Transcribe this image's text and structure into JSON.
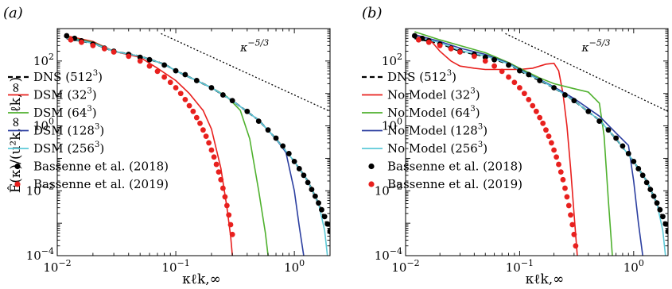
{
  "figure": {
    "ylabel": "Ê(κ)/(u²k,∞ ℓk,∞)",
    "xlabel": "κℓk,∞"
  },
  "chart_data": [
    {
      "type": "line",
      "panel": "(a)",
      "xlabel": "κℓk,∞",
      "ylabel": "Ê(κ)/(u²k,∞ ℓk,∞)",
      "xscale": "log",
      "yscale": "log",
      "xlim": [
        0.01,
        2
      ],
      "ylim": [
        0.0001,
        1000
      ],
      "xticks": [
        {
          "v": 0.01,
          "base": "10",
          "exp": "−2"
        },
        {
          "v": 0.1,
          "base": "10",
          "exp": "−1"
        },
        {
          "v": 1,
          "base": "10",
          "exp": "0"
        }
      ],
      "yticks": [
        {
          "v": 0.0001,
          "base": "10",
          "exp": "−4"
        },
        {
          "v": 0.01,
          "base": "10",
          "exp": "−2"
        },
        {
          "v": 1,
          "base": "10",
          "exp": "0"
        },
        {
          "v": 100,
          "base": "10",
          "exp": "2"
        }
      ],
      "grid": false,
      "legend_position": "left",
      "annotation": {
        "base": "κ",
        "exp": "−5/3",
        "x": 0.35,
        "y": 200
      },
      "reference_line": {
        "slope": -1.6667,
        "points": [
          [
            0.075,
            700
          ],
          [
            2,
            2.8
          ]
        ],
        "color": "#000000",
        "dash": "dotted"
      },
      "series": [
        {
          "name": "DNS",
          "res": "512",
          "color": "#000000",
          "style": "dashed",
          "x": [
            0.012,
            0.02,
            0.03,
            0.05,
            0.08,
            0.1,
            0.15,
            0.2,
            0.3,
            0.5,
            0.7,
            1.0,
            1.3,
            1.6,
            2.0
          ],
          "y": [
            500,
            350,
            200,
            140,
            80,
            50,
            25,
            15,
            6,
            1.5,
            0.4,
            0.08,
            0.02,
            0.004,
            0.0005
          ]
        },
        {
          "name": "DSM",
          "res": "32",
          "color": "#e8201e",
          "style": "solid",
          "x": [
            0.012,
            0.02,
            0.03,
            0.05,
            0.07,
            0.1,
            0.13,
            0.17,
            0.2,
            0.24,
            0.27,
            0.29,
            0.3
          ],
          "y": [
            600,
            400,
            200,
            130,
            60,
            25,
            10,
            3,
            0.8,
            0.05,
            0.003,
            0.0004,
            0.0001
          ]
        },
        {
          "name": "DSM",
          "res": "64",
          "color": "#4fb12e",
          "style": "solid",
          "x": [
            0.012,
            0.02,
            0.03,
            0.05,
            0.08,
            0.1,
            0.15,
            0.2,
            0.27,
            0.35,
            0.42,
            0.5,
            0.57,
            0.6
          ],
          "y": [
            550,
            380,
            200,
            140,
            80,
            50,
            25,
            15,
            8,
            3,
            0.4,
            0.01,
            0.0005,
            0.0001
          ]
        },
        {
          "name": "DSM",
          "res": "128",
          "color": "#2c3fa0",
          "style": "solid",
          "x": [
            0.012,
            0.02,
            0.03,
            0.05,
            0.08,
            0.1,
            0.15,
            0.2,
            0.3,
            0.5,
            0.7,
            0.85,
            1.0,
            1.1,
            1.2
          ],
          "y": [
            520,
            360,
            200,
            140,
            80,
            50,
            25,
            15,
            6,
            1.5,
            0.4,
            0.15,
            0.01,
            0.0008,
            0.0001
          ]
        },
        {
          "name": "DSM",
          "res": "256",
          "color": "#5ccad8",
          "style": "solid",
          "x": [
            0.012,
            0.02,
            0.03,
            0.05,
            0.08,
            0.1,
            0.15,
            0.2,
            0.3,
            0.5,
            0.7,
            1.0,
            1.3,
            1.6,
            1.8,
            1.9
          ],
          "y": [
            510,
            350,
            200,
            140,
            80,
            50,
            25,
            15,
            6,
            1.5,
            0.4,
            0.08,
            0.02,
            0.004,
            0.0006,
            0.0001
          ]
        },
        {
          "name": "Bassenne et al. (2018)",
          "color": "#000000",
          "style": "marker",
          "x": [
            0.012,
            0.014,
            0.016,
            0.02,
            0.025,
            0.03,
            0.04,
            0.05,
            0.06,
            0.08,
            0.1,
            0.12,
            0.15,
            0.2,
            0.25,
            0.3,
            0.4,
            0.5,
            0.6,
            0.7,
            0.8,
            0.9,
            1.0,
            1.1,
            1.2,
            1.3,
            1.4,
            1.5,
            1.6,
            1.7,
            1.8,
            1.9,
            2.0
          ],
          "y": [
            600,
            500,
            420,
            330,
            250,
            200,
            160,
            130,
            110,
            75,
            50,
            38,
            25,
            15,
            9,
            6,
            2.8,
            1.4,
            0.75,
            0.42,
            0.24,
            0.14,
            0.08,
            0.048,
            0.03,
            0.018,
            0.011,
            0.0068,
            0.0042,
            0.0026,
            0.0016,
            0.00095,
            0.00055
          ]
        },
        {
          "name": "Bassenne et al. (2019)",
          "color": "#e8201e",
          "style": "marker",
          "x": [
            0.013,
            0.016,
            0.02,
            0.025,
            0.03,
            0.04,
            0.05,
            0.06,
            0.07,
            0.08,
            0.09,
            0.1,
            0.11,
            0.12,
            0.13,
            0.14,
            0.15,
            0.16,
            0.17,
            0.18,
            0.19,
            0.2,
            0.21,
            0.22,
            0.23,
            0.24,
            0.25,
            0.26,
            0.27,
            0.28,
            0.29,
            0.3
          ],
          "y": [
            450,
            380,
            300,
            240,
            190,
            140,
            100,
            70,
            48,
            32,
            22,
            15,
            10,
            6.5,
            4.2,
            2.8,
            1.8,
            1.2,
            0.75,
            0.48,
            0.3,
            0.18,
            0.11,
            0.065,
            0.038,
            0.022,
            0.012,
            0.0065,
            0.0035,
            0.0018,
            0.0009,
            0.00045
          ]
        }
      ]
    },
    {
      "type": "line",
      "panel": "(b)",
      "xlabel": "κℓk,∞",
      "ylabel": "",
      "xscale": "log",
      "yscale": "log",
      "xlim": [
        0.01,
        2
      ],
      "ylim": [
        0.0001,
        1000
      ],
      "xticks": [
        {
          "v": 0.01,
          "base": "10",
          "exp": "−2"
        },
        {
          "v": 0.1,
          "base": "10",
          "exp": "−1"
        },
        {
          "v": 1,
          "base": "10",
          "exp": "0"
        }
      ],
      "yticks": [
        {
          "v": 0.0001,
          "base": "10",
          "exp": "−4"
        },
        {
          "v": 0.01,
          "base": "10",
          "exp": "−2"
        },
        {
          "v": 1,
          "base": "10",
          "exp": "0"
        },
        {
          "v": 100,
          "base": "10",
          "exp": "2"
        }
      ],
      "grid": false,
      "legend_position": "left",
      "annotation": {
        "base": "κ",
        "exp": "−5/3",
        "x": 0.35,
        "y": 200
      },
      "reference_line": {
        "slope": -1.6667,
        "points": [
          [
            0.075,
            700
          ],
          [
            2,
            2.8
          ]
        ],
        "color": "#000000",
        "dash": "dotted"
      },
      "series": [
        {
          "name": "DNS",
          "res": "512",
          "color": "#000000",
          "style": "dashed",
          "x": [
            0.012,
            0.02,
            0.03,
            0.05,
            0.08,
            0.1,
            0.15,
            0.2,
            0.3,
            0.5,
            0.7,
            1.0,
            1.3,
            1.6,
            2.0
          ],
          "y": [
            500,
            350,
            200,
            140,
            80,
            50,
            25,
            15,
            6,
            1.5,
            0.4,
            0.08,
            0.02,
            0.004,
            0.0005
          ]
        },
        {
          "name": "No Model",
          "res": "32",
          "color": "#e8201e",
          "style": "solid",
          "x": [
            0.012,
            0.016,
            0.02,
            0.025,
            0.03,
            0.04,
            0.05,
            0.07,
            0.1,
            0.13,
            0.17,
            0.2,
            0.22,
            0.24,
            0.26,
            0.28,
            0.3,
            0.32
          ],
          "y": [
            600,
            500,
            200,
            100,
            70,
            60,
            55,
            55,
            55,
            60,
            80,
            85,
            50,
            10,
            1,
            0.05,
            0.002,
            0.0001
          ]
        },
        {
          "name": "No Model",
          "res": "64",
          "color": "#4fb12e",
          "style": "solid",
          "x": [
            0.012,
            0.02,
            0.03,
            0.05,
            0.08,
            0.1,
            0.15,
            0.2,
            0.3,
            0.4,
            0.5,
            0.55,
            0.6,
            0.65
          ],
          "y": [
            800,
            450,
            300,
            180,
            90,
            60,
            30,
            20,
            14,
            11,
            5,
            0.5,
            0.005,
            0.0001
          ]
        },
        {
          "name": "No Model",
          "res": "128",
          "color": "#2c3fa0",
          "style": "solid",
          "x": [
            0.012,
            0.02,
            0.03,
            0.05,
            0.08,
            0.1,
            0.15,
            0.2,
            0.3,
            0.5,
            0.7,
            0.9,
            1.0,
            1.1,
            1.2
          ],
          "y": [
            650,
            400,
            250,
            160,
            85,
            55,
            27,
            16,
            7,
            2,
            0.6,
            0.25,
            0.02,
            0.001,
            0.0001
          ]
        },
        {
          "name": "No Model",
          "res": "256",
          "color": "#5ccad8",
          "style": "solid",
          "x": [
            0.012,
            0.02,
            0.03,
            0.05,
            0.08,
            0.1,
            0.15,
            0.2,
            0.3,
            0.5,
            0.7,
            1.0,
            1.3,
            1.6,
            1.8,
            1.9
          ],
          "y": [
            560,
            370,
            210,
            145,
            82,
            52,
            26,
            15,
            6,
            1.5,
            0.4,
            0.08,
            0.02,
            0.004,
            0.0006,
            0.0001
          ]
        },
        {
          "name": "Bassenne et al. (2018)",
          "color": "#000000",
          "style": "marker",
          "x": [
            0.012,
            0.014,
            0.016,
            0.02,
            0.025,
            0.03,
            0.04,
            0.05,
            0.06,
            0.08,
            0.1,
            0.12,
            0.15,
            0.2,
            0.25,
            0.3,
            0.4,
            0.5,
            0.6,
            0.7,
            0.8,
            0.9,
            1.0,
            1.1,
            1.2,
            1.3,
            1.4,
            1.5,
            1.6,
            1.7,
            1.8,
            1.9,
            2.0
          ],
          "y": [
            600,
            500,
            420,
            330,
            250,
            200,
            160,
            130,
            110,
            75,
            50,
            38,
            25,
            15,
            9,
            6,
            2.8,
            1.4,
            0.75,
            0.42,
            0.24,
            0.14,
            0.08,
            0.048,
            0.03,
            0.018,
            0.011,
            0.0068,
            0.0042,
            0.0026,
            0.0016,
            0.00095,
            0.00055
          ]
        },
        {
          "name": "Bassenne et al. (2019)",
          "color": "#e8201e",
          "style": "marker",
          "x": [
            0.013,
            0.016,
            0.02,
            0.025,
            0.03,
            0.04,
            0.05,
            0.06,
            0.07,
            0.08,
            0.09,
            0.1,
            0.11,
            0.12,
            0.13,
            0.14,
            0.15,
            0.16,
            0.17,
            0.18,
            0.19,
            0.2,
            0.21,
            0.22,
            0.23,
            0.24,
            0.25,
            0.26,
            0.27,
            0.28,
            0.29,
            0.3,
            0.31
          ],
          "y": [
            450,
            380,
            300,
            240,
            190,
            140,
            100,
            70,
            48,
            32,
            22,
            15,
            10,
            6.5,
            4.2,
            2.8,
            1.8,
            1.2,
            0.75,
            0.48,
            0.3,
            0.18,
            0.11,
            0.065,
            0.038,
            0.022,
            0.012,
            0.0065,
            0.0035,
            0.0018,
            0.0009,
            0.00045,
            0.0002
          ]
        }
      ]
    }
  ]
}
